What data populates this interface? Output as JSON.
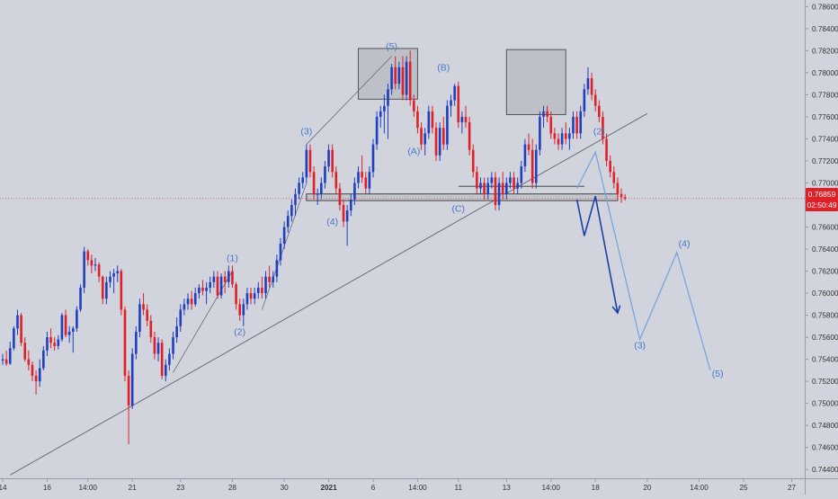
{
  "chart_data": {
    "type": "candlestick",
    "title": "",
    "colors": {
      "background": "#d1d4dc",
      "up_candle": "#1f3fbf",
      "down_candle": "#e01f26",
      "trendline": "#6a6a7a",
      "wave_label": "#4a77c8",
      "projection_primary": "#1b3ea8",
      "projection_alt": "#7aa5dd",
      "price_line": "#e05050",
      "price_tag_bg": "#e01f26",
      "price_tag_text": "#ffffff",
      "axis_text": "#333333",
      "box_fill": "#b8bac2",
      "box_stroke": "#555555"
    },
    "x_axis": {
      "tick_labels": [
        "14",
        "16",
        "14:00",
        "21",
        "23",
        "28",
        "30",
        "2021",
        "6",
        "14:00",
        "11",
        "13",
        "14:00",
        "18",
        "20",
        "14:00",
        "25",
        "27"
      ],
      "tick_index": [
        0,
        12,
        23,
        35,
        48,
        62,
        76,
        88,
        100,
        112,
        123,
        136,
        148,
        160,
        174,
        188,
        200,
        213
      ],
      "bold_label": "2021"
    },
    "y_axis": {
      "tick_labels": [
        "0.78600",
        "0.78400",
        "0.78200",
        "0.78000",
        "0.77800",
        "0.77600",
        "0.77400",
        "0.77200",
        "0.77000",
        "0.76800",
        "0.76600",
        "0.76400",
        "0.76200",
        "0.76000",
        "0.75800",
        "0.75600",
        "0.75400",
        "0.75200",
        "0.75000",
        "0.74800",
        "0.74600",
        "0.74400"
      ],
      "range": [
        0.7432,
        0.7866
      ]
    },
    "current_price": {
      "value": "0.76859",
      "countdown": "02:50:49",
      "level": 0.76859
    },
    "candles": [
      [
        0.7539,
        0.7545,
        0.7535,
        0.754
      ],
      [
        0.754,
        0.7548,
        0.7534,
        0.7536
      ],
      [
        0.7536,
        0.7556,
        0.7535,
        0.755
      ],
      [
        0.755,
        0.757,
        0.7548,
        0.7568
      ],
      [
        0.7568,
        0.7585,
        0.7562,
        0.758
      ],
      [
        0.758,
        0.7582,
        0.7552,
        0.7555
      ],
      [
        0.7555,
        0.756,
        0.7538,
        0.754
      ],
      [
        0.754,
        0.7548,
        0.753,
        0.7535
      ],
      [
        0.7535,
        0.7538,
        0.752,
        0.7525
      ],
      [
        0.7525,
        0.753,
        0.7508,
        0.752
      ],
      [
        0.752,
        0.754,
        0.7515,
        0.7532
      ],
      [
        0.7532,
        0.7552,
        0.753,
        0.7548
      ],
      [
        0.7548,
        0.7565,
        0.7543,
        0.756
      ],
      [
        0.756,
        0.7568,
        0.755,
        0.7555
      ],
      [
        0.7555,
        0.756,
        0.7548,
        0.7552
      ],
      [
        0.7552,
        0.7562,
        0.7549,
        0.7558
      ],
      [
        0.7558,
        0.7582,
        0.7556,
        0.758
      ],
      [
        0.758,
        0.7585,
        0.756,
        0.7562
      ],
      [
        0.7562,
        0.757,
        0.7555,
        0.7565
      ],
      [
        0.7565,
        0.757,
        0.7546,
        0.7568
      ],
      [
        0.7568,
        0.7588,
        0.7565,
        0.7585
      ],
      [
        0.7585,
        0.7608,
        0.7583,
        0.7605
      ],
      [
        0.7605,
        0.7642,
        0.76,
        0.7638
      ],
      [
        0.7638,
        0.764,
        0.7625,
        0.763
      ],
      [
        0.763,
        0.7635,
        0.7618,
        0.7625
      ],
      [
        0.7625,
        0.7632,
        0.762,
        0.7626
      ],
      [
        0.7626,
        0.7628,
        0.761,
        0.7615
      ],
      [
        0.7615,
        0.7616,
        0.759,
        0.7595
      ],
      [
        0.7595,
        0.7615,
        0.759,
        0.761
      ],
      [
        0.761,
        0.762,
        0.7605,
        0.7615
      ],
      [
        0.7615,
        0.7622,
        0.76,
        0.7618
      ],
      [
        0.7618,
        0.7625,
        0.761,
        0.762
      ],
      [
        0.762,
        0.7622,
        0.758,
        0.7585
      ],
      [
        0.7585,
        0.7588,
        0.752,
        0.7525
      ],
      [
        0.7525,
        0.753,
        0.7463,
        0.7498
      ],
      [
        0.7498,
        0.755,
        0.7495,
        0.7545
      ],
      [
        0.7545,
        0.757,
        0.754,
        0.7565
      ],
      [
        0.7565,
        0.7595,
        0.756,
        0.759
      ],
      [
        0.759,
        0.76,
        0.758,
        0.7585
      ],
      [
        0.7585,
        0.759,
        0.757,
        0.7575
      ],
      [
        0.7575,
        0.758,
        0.7555,
        0.756
      ],
      [
        0.756,
        0.7565,
        0.754,
        0.7545
      ],
      [
        0.7545,
        0.756,
        0.7538,
        0.7555
      ],
      [
        0.7555,
        0.7558,
        0.7522,
        0.7525
      ],
      [
        0.7525,
        0.754,
        0.752,
        0.7535
      ],
      [
        0.7535,
        0.755,
        0.753,
        0.7545
      ],
      [
        0.7545,
        0.7565,
        0.754,
        0.756
      ],
      [
        0.756,
        0.7578,
        0.7555,
        0.757
      ],
      [
        0.757,
        0.759,
        0.7565,
        0.7585
      ],
      [
        0.7585,
        0.7595,
        0.758,
        0.759
      ],
      [
        0.759,
        0.76,
        0.7585,
        0.7595
      ],
      [
        0.7595,
        0.7602,
        0.7585,
        0.759
      ],
      [
        0.759,
        0.7605,
        0.7588,
        0.76
      ],
      [
        0.76,
        0.7608,
        0.7595,
        0.7605
      ],
      [
        0.7605,
        0.7612,
        0.7598,
        0.7602
      ],
      [
        0.7602,
        0.761,
        0.759,
        0.7605
      ],
      [
        0.7605,
        0.7615,
        0.76,
        0.761
      ],
      [
        0.761,
        0.762,
        0.7605,
        0.7615
      ],
      [
        0.7615,
        0.762,
        0.7595,
        0.7598
      ],
      [
        0.7598,
        0.7618,
        0.7595,
        0.7615
      ],
      [
        0.7615,
        0.762,
        0.76,
        0.761
      ],
      [
        0.761,
        0.7625,
        0.7605,
        0.762
      ],
      [
        0.762,
        0.7625,
        0.7605,
        0.7608
      ],
      [
        0.7608,
        0.761,
        0.7585,
        0.759
      ],
      [
        0.759,
        0.7595,
        0.7575,
        0.758
      ],
      [
        0.758,
        0.7595,
        0.757,
        0.759
      ],
      [
        0.759,
        0.7605,
        0.7585,
        0.76
      ],
      [
        0.76,
        0.7605,
        0.759,
        0.7595
      ],
      [
        0.7595,
        0.7605,
        0.759,
        0.76
      ],
      [
        0.76,
        0.761,
        0.7595,
        0.7605
      ],
      [
        0.7605,
        0.7615,
        0.7595,
        0.76
      ],
      [
        0.76,
        0.762,
        0.7595,
        0.7615
      ],
      [
        0.7615,
        0.7625,
        0.7605,
        0.761
      ],
      [
        0.761,
        0.762,
        0.7605,
        0.7615
      ],
      [
        0.7615,
        0.7635,
        0.761,
        0.763
      ],
      [
        0.763,
        0.765,
        0.7625,
        0.7645
      ],
      [
        0.7645,
        0.7665,
        0.764,
        0.766
      ],
      [
        0.766,
        0.7675,
        0.7655,
        0.767
      ],
      [
        0.767,
        0.7685,
        0.7665,
        0.768
      ],
      [
        0.768,
        0.7695,
        0.767,
        0.769
      ],
      [
        0.769,
        0.7705,
        0.7685,
        0.77
      ],
      [
        0.77,
        0.771,
        0.7695,
        0.7705
      ],
      [
        0.7705,
        0.7735,
        0.77,
        0.773
      ],
      [
        0.773,
        0.7735,
        0.7705,
        0.771
      ],
      [
        0.771,
        0.7715,
        0.7685,
        0.769
      ],
      [
        0.769,
        0.7695,
        0.768,
        0.769
      ],
      [
        0.769,
        0.7705,
        0.7685,
        0.77
      ],
      [
        0.77,
        0.772,
        0.7695,
        0.7715
      ],
      [
        0.7715,
        0.7735,
        0.771,
        0.773
      ],
      [
        0.773,
        0.7735,
        0.7705,
        0.771
      ],
      [
        0.771,
        0.7715,
        0.769,
        0.7695
      ],
      [
        0.7695,
        0.77,
        0.7675,
        0.768
      ],
      [
        0.768,
        0.7685,
        0.766,
        0.7665
      ],
      [
        0.7665,
        0.768,
        0.7643,
        0.7675
      ],
      [
        0.7675,
        0.769,
        0.767,
        0.7685
      ],
      [
        0.7685,
        0.7705,
        0.768,
        0.77
      ],
      [
        0.77,
        0.7715,
        0.7695,
        0.771
      ],
      [
        0.771,
        0.7725,
        0.77,
        0.7705
      ],
      [
        0.7705,
        0.771,
        0.769,
        0.7695
      ],
      [
        0.7695,
        0.7715,
        0.769,
        0.771
      ],
      [
        0.771,
        0.774,
        0.7705,
        0.7735
      ],
      [
        0.7735,
        0.7765,
        0.773,
        0.776
      ],
      [
        0.776,
        0.777,
        0.775,
        0.7765
      ],
      [
        0.7765,
        0.778,
        0.7745,
        0.777
      ],
      [
        0.777,
        0.779,
        0.774,
        0.7785
      ],
      [
        0.7785,
        0.7808,
        0.778,
        0.7805
      ],
      [
        0.7805,
        0.7815,
        0.7785,
        0.779
      ],
      [
        0.779,
        0.781,
        0.7785,
        0.7805
      ],
      [
        0.7805,
        0.7815,
        0.7775,
        0.778
      ],
      [
        0.778,
        0.7815,
        0.7775,
        0.781
      ],
      [
        0.781,
        0.782,
        0.777,
        0.7775
      ],
      [
        0.7775,
        0.778,
        0.776,
        0.7765
      ],
      [
        0.7765,
        0.777,
        0.7745,
        0.775
      ],
      [
        0.775,
        0.7755,
        0.773,
        0.7735
      ],
      [
        0.7735,
        0.775,
        0.7725,
        0.7745
      ],
      [
        0.7745,
        0.777,
        0.774,
        0.7765
      ],
      [
        0.7765,
        0.777,
        0.7745,
        0.775
      ],
      [
        0.775,
        0.7755,
        0.772,
        0.7725
      ],
      [
        0.7725,
        0.7755,
        0.772,
        0.775
      ],
      [
        0.775,
        0.776,
        0.773,
        0.7735
      ],
      [
        0.7735,
        0.7775,
        0.773,
        0.777
      ],
      [
        0.777,
        0.778,
        0.776,
        0.7775
      ],
      [
        0.7775,
        0.779,
        0.777,
        0.7788
      ],
      [
        0.7788,
        0.7792,
        0.775,
        0.7755
      ],
      [
        0.7755,
        0.7765,
        0.7745,
        0.776
      ],
      [
        0.776,
        0.777,
        0.775,
        0.7755
      ],
      [
        0.7755,
        0.776,
        0.7725,
        0.773
      ],
      [
        0.773,
        0.7735,
        0.7705,
        0.771
      ],
      [
        0.771,
        0.7715,
        0.769,
        0.7695
      ],
      [
        0.7695,
        0.7705,
        0.769,
        0.77
      ],
      [
        0.77,
        0.7705,
        0.7685,
        0.769
      ],
      [
        0.769,
        0.7705,
        0.7685,
        0.77
      ],
      [
        0.77,
        0.771,
        0.7695,
        0.7705
      ],
      [
        0.7705,
        0.771,
        0.7675,
        0.768
      ],
      [
        0.768,
        0.7705,
        0.7675,
        0.77
      ],
      [
        0.77,
        0.771,
        0.7685,
        0.769
      ],
      [
        0.769,
        0.7705,
        0.7685,
        0.77
      ],
      [
        0.77,
        0.771,
        0.7695,
        0.7705
      ],
      [
        0.7705,
        0.771,
        0.769,
        0.7695
      ],
      [
        0.7695,
        0.7705,
        0.769,
        0.77
      ],
      [
        0.77,
        0.772,
        0.7695,
        0.7715
      ],
      [
        0.7715,
        0.774,
        0.771,
        0.7735
      ],
      [
        0.7735,
        0.7745,
        0.7725,
        0.773
      ],
      [
        0.773,
        0.774,
        0.7695,
        0.77
      ],
      [
        0.77,
        0.7735,
        0.7695,
        0.773
      ],
      [
        0.773,
        0.7765,
        0.7725,
        0.776
      ],
      [
        0.776,
        0.777,
        0.775,
        0.7765
      ],
      [
        0.7765,
        0.777,
        0.7755,
        0.776
      ],
      [
        0.776,
        0.7765,
        0.774,
        0.7745
      ],
      [
        0.7745,
        0.775,
        0.7735,
        0.774
      ],
      [
        0.774,
        0.7745,
        0.773,
        0.7735
      ],
      [
        0.7735,
        0.775,
        0.773,
        0.7745
      ],
      [
        0.7745,
        0.7755,
        0.7735,
        0.774
      ],
      [
        0.774,
        0.775,
        0.773,
        0.7745
      ],
      [
        0.7745,
        0.7765,
        0.774,
        0.776
      ],
      [
        0.776,
        0.7765,
        0.774,
        0.7745
      ],
      [
        0.7745,
        0.777,
        0.774,
        0.7765
      ],
      [
        0.7765,
        0.779,
        0.776,
        0.7785
      ],
      [
        0.7785,
        0.7805,
        0.778,
        0.7795
      ],
      [
        0.7795,
        0.78,
        0.7775,
        0.778
      ],
      [
        0.778,
        0.7785,
        0.7765,
        0.777
      ],
      [
        0.777,
        0.7775,
        0.7755,
        0.776
      ],
      [
        0.776,
        0.7765,
        0.7735,
        0.774
      ],
      [
        0.774,
        0.7745,
        0.7715,
        0.772
      ],
      [
        0.772,
        0.7725,
        0.7705,
        0.771
      ],
      [
        0.771,
        0.7715,
        0.7695,
        0.77
      ],
      [
        0.77,
        0.7705,
        0.7685,
        0.769
      ],
      [
        0.769,
        0.7695,
        0.7682,
        0.7687
      ],
      [
        0.7687,
        0.769,
        0.7684,
        0.76859
      ]
    ],
    "wave_labels": [
      {
        "text": "(1)",
        "i": 62,
        "price": 0.7629
      },
      {
        "text": "(2)",
        "i": 64,
        "price": 0.7562
      },
      {
        "text": "(3)",
        "i": 82,
        "price": 0.7744
      },
      {
        "text": "(4)",
        "i": 89,
        "price": 0.7662
      },
      {
        "text": "(5)",
        "i": 105,
        "price": 0.7821
      },
      {
        "text": "(A)",
        "i": 111,
        "price": 0.7726
      },
      {
        "text": "(B)",
        "i": 119,
        "price": 0.7802
      },
      {
        "text": "(C)",
        "i": 123,
        "price": 0.7674
      },
      {
        "text": "(2)",
        "i": 161,
        "price": 0.7744
      },
      {
        "text": "(3)",
        "i": 172,
        "price": 0.755
      },
      {
        "text": "(4)",
        "i": 184,
        "price": 0.7642
      },
      {
        "text": "(5)",
        "i": 193,
        "price": 0.7524
      }
    ],
    "main_trendline": {
      "from": [
        2,
        0.7435
      ],
      "to": [
        174,
        0.7763
      ]
    },
    "wave_trendlines": [
      {
        "from": [
          46,
          0.7528
        ],
        "to": [
          62,
          0.762
        ]
      },
      {
        "from": [
          70,
          0.7585
        ],
        "to": [
          82,
          0.77
        ]
      },
      {
        "from": [
          82,
          0.7735
        ],
        "to": [
          105,
          0.7815
        ]
      }
    ],
    "support_band": [
      0.7684,
      0.769
    ],
    "support_band_range": [
      82,
      166
    ],
    "resistance_line": {
      "level": 0.7697,
      "range": [
        123,
        157
      ]
    },
    "boxes": [
      {
        "i0": 96,
        "i1": 112,
        "p0": 0.7776,
        "p1": 0.7822
      },
      {
        "i0": 136,
        "i1": 152,
        "p0": 0.7762,
        "p1": 0.7821
      }
    ],
    "projection_primary": [
      [
        155,
        0.7685
      ],
      [
        157,
        0.7652
      ],
      [
        160,
        0.7688
      ],
      [
        166,
        0.7582
      ]
    ],
    "projection_alt": [
      [
        155,
        0.7695
      ],
      [
        160,
        0.7728
      ],
      [
        172,
        0.7558
      ],
      [
        182,
        0.7637
      ],
      [
        191,
        0.753
      ]
    ]
  }
}
